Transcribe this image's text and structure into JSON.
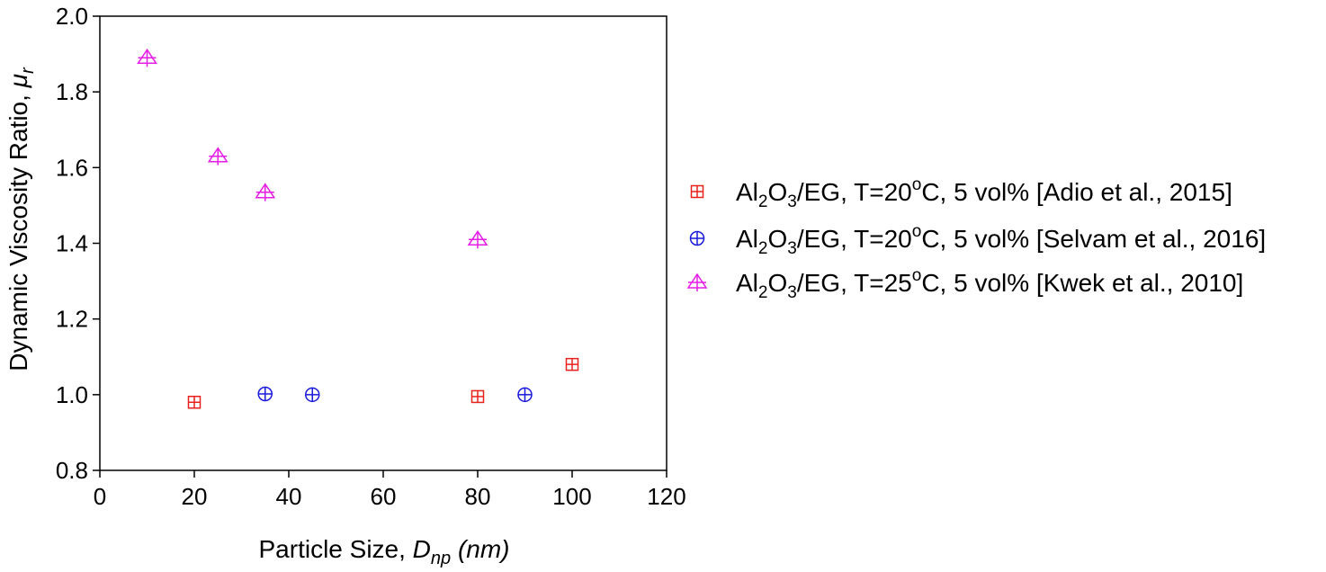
{
  "chart_data": {
    "type": "scatter",
    "xlabel": {
      "main": "Particle Size, ",
      "symbol": "D",
      "sub": "np",
      "unit": "(nm)"
    },
    "ylabel": {
      "main": "Dynamic Viscosity Ratio, ",
      "symbol": "μ",
      "sub": "r"
    },
    "xlim": [
      0,
      120
    ],
    "ylim": [
      0.8,
      2.0
    ],
    "x_ticks": [
      0,
      20,
      40,
      60,
      80,
      100,
      120
    ],
    "y_ticks": [
      0.8,
      1.0,
      1.2,
      1.4,
      1.6,
      1.8,
      2.0
    ],
    "x_tick_labels": [
      "0",
      "20",
      "40",
      "60",
      "80",
      "100",
      "120"
    ],
    "y_tick_labels": [
      "0.8",
      "1.0",
      "1.2",
      "1.4",
      "1.6",
      "1.8",
      "2.0"
    ],
    "grid": false,
    "legend_position": "right",
    "series": [
      {
        "name": "Al2O3/EG, T=20oC, 5 vol% [Adio et al., 2015]",
        "legend": {
          "pre": "Al",
          "sub1": "2",
          "mid": "O",
          "sub2": "3",
          "post1": "/EG, T=20",
          "sup": "o",
          "post2": "C, 5 vol% [Adio et al., 2015]"
        },
        "marker": "square-plus",
        "color": "#e8211d",
        "x": [
          20,
          80,
          100
        ],
        "y": [
          0.98,
          0.995,
          1.08
        ]
      },
      {
        "name": "Al2O3/EG, T=20oC, 5 vol% [Selvam et al., 2016]",
        "legend": {
          "pre": "Al",
          "sub1": "2",
          "mid": "O",
          "sub2": "3",
          "post1": "/EG, T=20",
          "sup": "o",
          "post2": "C, 5 vol% [Selvam et al., 2016]"
        },
        "marker": "circle-plus",
        "color": "#1a1adb",
        "x": [
          35,
          45,
          90
        ],
        "y": [
          1.002,
          1.0,
          1.0
        ]
      },
      {
        "name": "Al2O3/EG, T=25oC, 5 vol% [Kwek et al., 2010]",
        "legend": {
          "pre": "Al",
          "sub1": "2",
          "mid": "O",
          "sub2": "3",
          "post1": "/EG, T=25",
          "sup": "o",
          "post2": "C, 5 vol% [Kwek et al., 2010]"
        },
        "marker": "triangle-plus",
        "color": "#e61de6",
        "x": [
          10,
          25,
          35,
          80
        ],
        "y": [
          1.89,
          1.63,
          1.535,
          1.41
        ]
      }
    ]
  }
}
